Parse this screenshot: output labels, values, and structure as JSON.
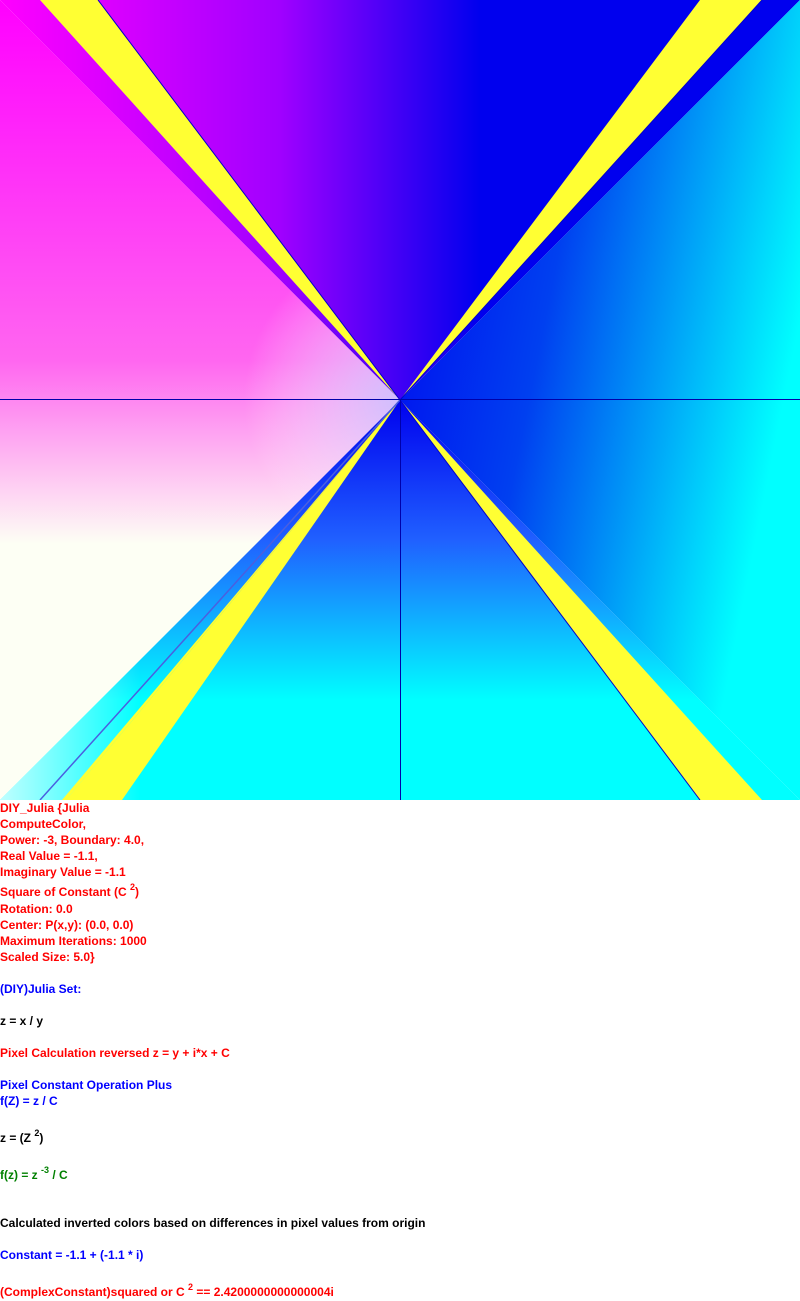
{
  "colors": {
    "red": "#ff0000",
    "blue": "#0000ff",
    "black": "#000000",
    "green": "#008000",
    "magenta": "#ff00ff",
    "cyan": "#00ffff",
    "yellow": "#ffff33",
    "fractal_blue": "#0000ee",
    "near_white": "#fdfff4"
  },
  "image": {
    "name": "julia-set-render"
  },
  "info": {
    "l1": "DIY_Julia {Julia",
    "l2": "ComputeColor,",
    "l3": "Power: -3, Boundary: 4.0,",
    "l4": "Real Value = -1.1,",
    "l5": "Imaginary Value = -1.1",
    "l6_pre": "Square of Constant (C ",
    "l6_sup": "2",
    "l6_post": ")",
    "l7": "Rotation: 0.0",
    "l8": "Center: P(x,y): (0.0, 0.0)",
    "l9": "Maximum Iterations: 1000",
    "l10": "Scaled Size: 5.0}",
    "l11": "(DIY)Julia Set:",
    "l12": "z = x / y",
    "l13": "Pixel Calculation reversed z = y + i*x + C",
    "l14": "Pixel Constant Operation Plus",
    "l15": "f(Z) = z / C",
    "l16_pre": "z = (Z ",
    "l16_sup": "2",
    "l16_post": ")",
    "l17_pre": "f(z) = z ",
    "l17_sup": "-3",
    "l17_post": " / C",
    "l18": "Calculated inverted colors based on differences in pixel values from origin",
    "l19": "Constant = -1.1 + (-1.1 * i)",
    "l20_pre": "(ComplexConstant)squared or C ",
    "l20_sup": "2",
    "l20_post": " == 2.4200000000000004i"
  }
}
